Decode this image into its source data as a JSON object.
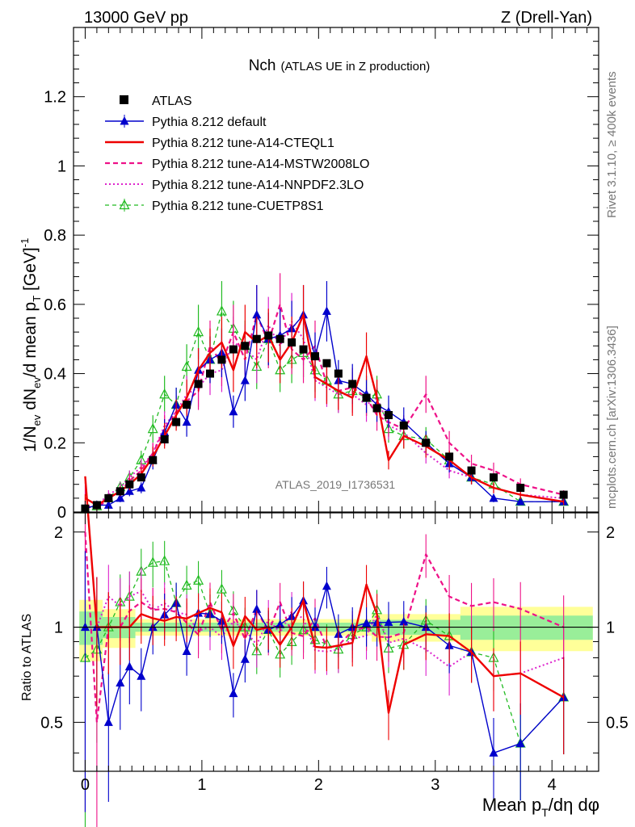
{
  "header": {
    "left": "13000 GeV pp",
    "right": "Z (Drell-Yan)"
  },
  "title": {
    "main": "Nch",
    "sub": "(ATLAS UE in Z production)"
  },
  "side_labels": {
    "rivet": "Rivet 3.1.10, ≥ 400k events",
    "mcplots": "mcplots.cern.ch [arXiv:1306.3436]"
  },
  "analysis_label": "ATLAS_2019_I1736531",
  "axes": {
    "ylabel_main": "1/N_ev dN_ev/d mean p_T [GeV]^-1",
    "ylabel_ratio": "Ratio to ATLAS",
    "xlabel": "Mean p_T/dη dφ"
  },
  "colors": {
    "data": "#000000",
    "default": "#0000cc",
    "cteql1": "#ee0000",
    "mstw": "#ee1188",
    "nnpdf": "#dd22cc",
    "cuetp8s1": "#22bb22",
    "band_inner": "#99ee99",
    "band_outer": "#ffff99"
  },
  "chart_data": {
    "type": "line",
    "xlim": [
      -0.1,
      4.4
    ],
    "ylim_main": [
      0,
      1.4
    ],
    "ylim_ratio": [
      0.35,
      2.3
    ],
    "xticks": [
      "0",
      "1",
      "2",
      "3",
      "4"
    ],
    "yticks_main": [
      "0",
      "0.2",
      "0.4",
      "0.6",
      "0.8",
      "1",
      "1.2"
    ],
    "yticks_ratio": [
      "0.5",
      "1",
      "2"
    ],
    "x": [
      0.0,
      0.1,
      0.2,
      0.3,
      0.38,
      0.48,
      0.58,
      0.68,
      0.78,
      0.87,
      0.97,
      1.07,
      1.17,
      1.27,
      1.37,
      1.47,
      1.57,
      1.67,
      1.77,
      1.87,
      1.97,
      2.07,
      2.17,
      2.29,
      2.41,
      2.5,
      2.6,
      2.73,
      2.92,
      3.12,
      3.31,
      3.5,
      3.73,
      4.1
    ],
    "series": [
      {
        "name": "ATLAS",
        "key": "data",
        "values": [
          0.01,
          0.02,
          0.04,
          0.06,
          0.08,
          0.1,
          0.15,
          0.21,
          0.26,
          0.31,
          0.37,
          0.4,
          0.44,
          0.47,
          0.48,
          0.5,
          0.51,
          0.5,
          0.49,
          0.47,
          0.45,
          0.43,
          0.4,
          0.37,
          0.33,
          0.3,
          0.28,
          0.25,
          0.2,
          0.16,
          0.12,
          0.1,
          0.07,
          0.05
        ]
      },
      {
        "name": "Pythia 8.212 default",
        "key": "default",
        "values": [
          0.01,
          0.02,
          0.02,
          0.04,
          0.06,
          0.07,
          0.15,
          0.23,
          0.31,
          0.26,
          0.41,
          0.44,
          0.46,
          0.29,
          0.38,
          0.57,
          0.5,
          0.51,
          0.53,
          0.57,
          0.45,
          0.58,
          0.38,
          0.37,
          0.34,
          0.31,
          0.29,
          0.26,
          0.2,
          0.14,
          0.1,
          0.04,
          0.03,
          0.03
        ]
      },
      {
        "name": "Pythia 8.212 tune-A14-CTEQL1",
        "key": "cteql1",
        "values": [
          0.04,
          0.02,
          0.04,
          0.06,
          0.08,
          0.11,
          0.16,
          0.22,
          0.28,
          0.33,
          0.41,
          0.46,
          0.49,
          0.41,
          0.52,
          0.49,
          0.51,
          0.44,
          0.49,
          0.57,
          0.39,
          0.37,
          0.35,
          0.33,
          0.45,
          0.33,
          0.15,
          0.22,
          0.19,
          0.15,
          0.1,
          0.07,
          0.05,
          0.03
        ]
      },
      {
        "name": "Pythia 8.212 tune-A14-MSTW2008LO",
        "key": "mstw",
        "values": [
          0.02,
          0.01,
          0.04,
          0.06,
          0.09,
          0.12,
          0.17,
          0.24,
          0.29,
          0.32,
          0.35,
          0.48,
          0.43,
          0.52,
          0.44,
          0.57,
          0.49,
          0.6,
          0.47,
          0.44,
          0.48,
          0.37,
          0.35,
          0.36,
          0.33,
          0.28,
          0.26,
          0.24,
          0.34,
          0.2,
          0.14,
          0.12,
          0.08,
          0.05
        ]
      },
      {
        "name": "Pythia 8.212 tune-A14-NNPDF2.3LO",
        "key": "nnpdf",
        "values": [
          0.01,
          0.02,
          0.05,
          0.07,
          0.1,
          0.13,
          0.17,
          0.25,
          0.29,
          0.34,
          0.36,
          0.4,
          0.41,
          0.49,
          0.47,
          0.44,
          0.54,
          0.48,
          0.55,
          0.5,
          0.38,
          0.36,
          0.34,
          0.34,
          0.31,
          0.33,
          0.25,
          0.23,
          0.17,
          0.12,
          0.1,
          0.07,
          0.05,
          0.04
        ]
      },
      {
        "name": "Pythia 8.212 tune-CUETP8S1",
        "key": "cuetp8s1",
        "values": [
          0.008,
          0.017,
          0.04,
          0.072,
          0.1,
          0.15,
          0.24,
          0.34,
          0.31,
          0.42,
          0.52,
          0.44,
          0.58,
          0.53,
          0.48,
          0.42,
          0.5,
          0.41,
          0.44,
          0.46,
          0.41,
          0.38,
          0.34,
          0.35,
          0.33,
          0.34,
          0.24,
          0.22,
          0.21,
          0.15,
          0.1,
          0.08,
          0.03,
          0.03
        ]
      }
    ]
  }
}
